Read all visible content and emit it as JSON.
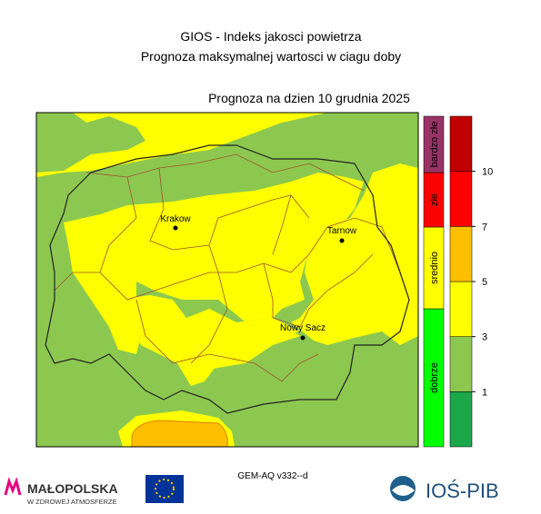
{
  "title": "GIOS - Indeks jakosci powietrza",
  "subtitle": "Prognoza maksymalnej wartosci w ciagu doby",
  "forecast_date": "Prognoza na dzien  10 grudnia 2025",
  "cities": [
    "Krakow",
    "Tarnow",
    "Nowy Sacz"
  ],
  "categories": [
    {
      "label": "dobrze",
      "color": "#00ff00"
    },
    {
      "label": "srednio",
      "color": "#ffff00"
    },
    {
      "label": "złe",
      "color": "#ff0000"
    },
    {
      "label": "bardzo złe",
      "color": "#993366"
    }
  ],
  "scale": {
    "ticks": [
      1,
      3,
      5,
      7,
      10
    ],
    "colors": [
      "#1aa84a",
      "#8cc850",
      "#ffff00",
      "#ffbf00",
      "#ff0000",
      "#c00000"
    ]
  },
  "model": "GEM-AQ v332--d",
  "logos": {
    "malopolska": "MAŁOPOLSKA",
    "malopolska_sub": "W ZDROWEJ ATMOSFERZE",
    "ios": "IOŚ-PIB"
  }
}
